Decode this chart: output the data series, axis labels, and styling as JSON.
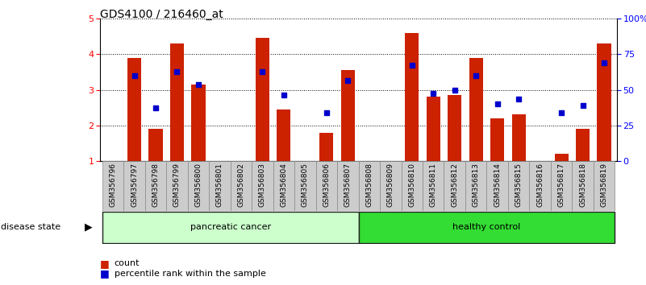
{
  "title": "GDS4100 / 216460_at",
  "categories": [
    "GSM356796",
    "GSM356797",
    "GSM356798",
    "GSM356799",
    "GSM356800",
    "GSM356801",
    "GSM356802",
    "GSM356803",
    "GSM356804",
    "GSM356805",
    "GSM356806",
    "GSM356807",
    "GSM356808",
    "GSM356809",
    "GSM356810",
    "GSM356811",
    "GSM356812",
    "GSM356813",
    "GSM356814",
    "GSM356815",
    "GSM356816",
    "GSM356817",
    "GSM356818",
    "GSM356819"
  ],
  "bar_values": [
    1.0,
    3.9,
    1.9,
    4.3,
    3.15,
    1.0,
    1.0,
    4.45,
    2.45,
    1.0,
    1.8,
    3.55,
    1.0,
    1.0,
    4.6,
    2.8,
    2.85,
    3.9,
    2.2,
    2.3,
    1.0,
    1.2,
    1.9,
    4.3
  ],
  "dot_values": [
    null,
    3.4,
    2.5,
    3.5,
    3.15,
    null,
    null,
    3.5,
    2.85,
    null,
    2.35,
    3.25,
    null,
    null,
    3.7,
    2.9,
    3.0,
    3.4,
    2.6,
    2.75,
    null,
    2.35,
    2.55,
    3.75
  ],
  "bar_color": "#CC2200",
  "dot_color": "#0000CC",
  "bar_bottom": 1.0,
  "ylim_left": [
    1.0,
    5.0
  ],
  "ylim_right": [
    0,
    100
  ],
  "yticks_left": [
    1,
    2,
    3,
    4,
    5
  ],
  "yticks_right": [
    0,
    25,
    50,
    75,
    100
  ],
  "ytick_labels_right": [
    "0",
    "25",
    "50",
    "75",
    "100%"
  ],
  "background_color": "#ffffff",
  "legend_items": [
    "count",
    "percentile rank within the sample"
  ],
  "legend_colors": [
    "#CC2200",
    "#0000CC"
  ],
  "groups": [
    {
      "label": "pancreatic cancer",
      "start": 0,
      "end": 12,
      "color": "#CCFFCC"
    },
    {
      "label": "healthy control",
      "start": 12,
      "end": 24,
      "color": "#33DD33"
    }
  ],
  "label_bg_color": "#CCCCCC",
  "label_edge_color": "#888888"
}
